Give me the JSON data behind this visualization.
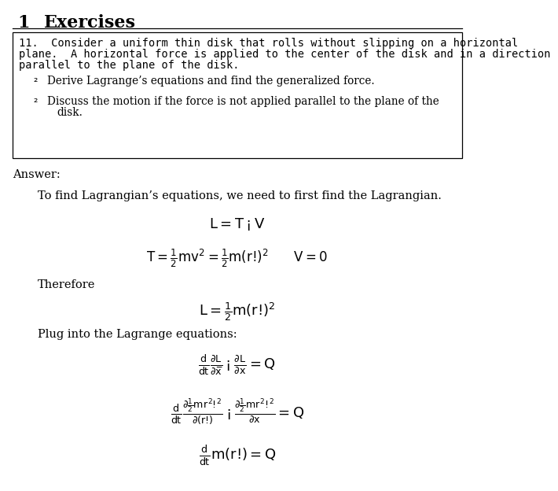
{
  "bg": "#ffffff",
  "text_color": "#000000",
  "box_border_color": "#000000",
  "title_num": "1",
  "title_text": "Exercises",
  "box_line1": "11.  Consider a uniform thin disk that rolls without slipping on a horizontal",
  "box_line2": "plane.  A horizontal force is applied to the center of the disk and in a direction",
  "box_line3": "parallel to the plane of the disk.",
  "bullet1": "Derive Lagrange’s equations and find the generalized force.",
  "bullet2a": "Discuss the motion if the force is not applied parallel to the plane of the",
  "bullet2b": "disk.",
  "answer": "Answer:",
  "intro": "To find Lagrangian’s equations, we need to first find the Lagrangian.",
  "eq1": "$L = T - V$",
  "eq2": "$T = \\frac{1}{2}mv^2 = \\frac{1}{2}m(r\\omega)^2 \\qquad V = 0$",
  "therefore": "Therefore",
  "eq3": "$L = \\frac{1}{2}m(r\\omega)^2$",
  "plug": "Plug into the Lagrange equations:",
  "eq4": "$\\frac{d}{dt}\\frac{\\partial L}{\\partial \\dot{x}} - \\frac{\\partial L}{\\partial x} = Q$",
  "eq5": "$\\frac{d}{dt}\\frac{\\partial \\frac{1}{2}mr^2\\omega^2}{\\partial (r\\omega)} - \\frac{\\partial \\frac{1}{2}mr^2\\omega^2}{\\partial x} = Q$",
  "eq6": "$\\frac{d}{dt}m(r\\omega) = Q$"
}
